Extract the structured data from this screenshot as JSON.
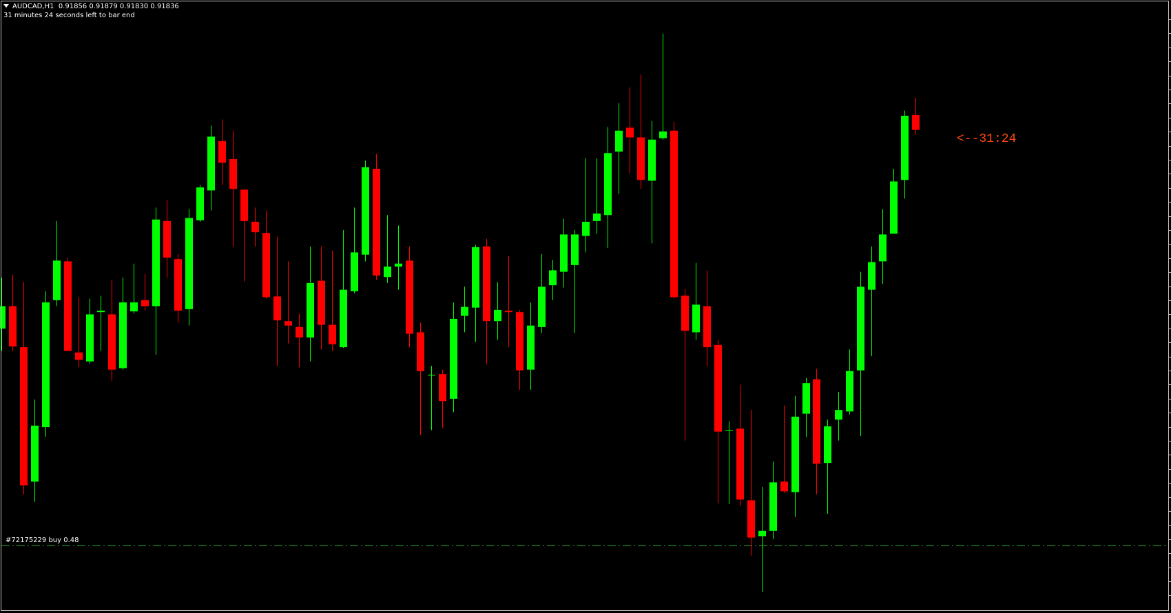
{
  "header": {
    "symbol": "AUDCAD,H1",
    "ohlc": "0.91856 0.91879 0.91830 0.91836",
    "timer_text": "31 minutes 24 seconds left to bar end"
  },
  "order_line": {
    "label": "#72175229 buy 0.48",
    "price": 0.91279,
    "color": "#2fa82f"
  },
  "countdown": {
    "text": "<--31:24",
    "color": "#ff4a10"
  },
  "colors": {
    "bull": "#00ff00",
    "bear": "#ff0000",
    "background": "#000000"
  },
  "chart_data": {
    "type": "candlestick",
    "symbol": "AUDCAD",
    "timeframe": "H1",
    "grid": false,
    "columns": [
      "open",
      "high",
      "low",
      "close"
    ],
    "candles": [
      [
        0.9157,
        0.91638,
        0.9154,
        0.916
      ],
      [
        0.916,
        0.91642,
        0.9154,
        0.91546
      ],
      [
        0.91545,
        0.91632,
        0.91348,
        0.9136
      ],
      [
        0.91365,
        0.91475,
        0.91338,
        0.9144
      ],
      [
        0.91438,
        0.9162,
        0.91425,
        0.91605
      ],
      [
        0.91608,
        0.91714,
        0.916,
        0.91661
      ],
      [
        0.9166,
        0.91665,
        0.9154,
        0.9154
      ],
      [
        0.91538,
        0.91612,
        0.91518,
        0.91528
      ],
      [
        0.91526,
        0.9161,
        0.91523,
        0.91589
      ],
      [
        0.91592,
        0.91614,
        0.9154,
        0.91594
      ],
      [
        0.91589,
        0.91635,
        0.915,
        0.91515
      ],
      [
        0.91517,
        0.91638,
        0.91515,
        0.91605
      ],
      [
        0.91593,
        0.91657,
        0.9159,
        0.91605
      ],
      [
        0.91608,
        0.91643,
        0.91594,
        0.916
      ],
      [
        0.916,
        0.91732,
        0.91535,
        0.91716
      ],
      [
        0.91714,
        0.91742,
        0.91638,
        0.91665
      ],
      [
        0.91663,
        0.9167,
        0.91578,
        0.91594
      ],
      [
        0.91596,
        0.9173,
        0.91574,
        0.91718
      ],
      [
        0.91715,
        0.91762,
        0.91713,
        0.91759
      ],
      [
        0.91755,
        0.91842,
        0.91728,
        0.91827
      ],
      [
        0.91821,
        0.9185,
        0.91762,
        0.91792
      ],
      [
        0.91797,
        0.91835,
        0.9168,
        0.91757
      ],
      [
        0.91756,
        0.91757,
        0.91633,
        0.91714
      ],
      [
        0.91713,
        0.91732,
        0.9168,
        0.91699
      ],
      [
        0.91698,
        0.91728,
        0.9161,
        0.91612
      ],
      [
        0.91613,
        0.91693,
        0.9152,
        0.91581
      ],
      [
        0.9158,
        0.9166,
        0.9155,
        0.91574
      ],
      [
        0.91572,
        0.9159,
        0.91518,
        0.91558
      ],
      [
        0.91558,
        0.9168,
        0.91526,
        0.91631
      ],
      [
        0.91634,
        0.9168,
        0.91542,
        0.91575
      ],
      [
        0.91575,
        0.91674,
        0.9154,
        0.91549
      ],
      [
        0.91545,
        0.91702,
        0.91544,
        0.91622
      ],
      [
        0.9162,
        0.91732,
        0.91617,
        0.91672
      ],
      [
        0.91669,
        0.91795,
        0.9166,
        0.91786
      ],
      [
        0.91784,
        0.91804,
        0.91635,
        0.91641
      ],
      [
        0.91639,
        0.91722,
        0.91631,
        0.91653
      ],
      [
        0.91653,
        0.91708,
        0.91622,
        0.91657
      ],
      [
        0.91661,
        0.9168,
        0.91545,
        0.91563
      ],
      [
        0.91565,
        0.91578,
        0.91427,
        0.91513
      ],
      [
        0.91507,
        0.9152,
        0.91434,
        0.91508
      ],
      [
        0.91509,
        0.91515,
        0.91437,
        0.91473
      ],
      [
        0.91476,
        0.91605,
        0.91458,
        0.91583
      ],
      [
        0.91587,
        0.91626,
        0.91565,
        0.91599
      ],
      [
        0.91598,
        0.91682,
        0.91552,
        0.91679
      ],
      [
        0.9168,
        0.9169,
        0.91522,
        0.9158
      ],
      [
        0.9158,
        0.91632,
        0.91555,
        0.91595
      ],
      [
        0.91594,
        0.91667,
        0.91545,
        0.91592
      ],
      [
        0.91592,
        0.91595,
        0.91488,
        0.91514
      ],
      [
        0.91515,
        0.91605,
        0.91488,
        0.91574
      ],
      [
        0.91572,
        0.9167,
        0.91564,
        0.91626
      ],
      [
        0.91628,
        0.91662,
        0.91608,
        0.91648
      ],
      [
        0.91646,
        0.91717,
        0.91625,
        0.91696
      ],
      [
        0.91655,
        0.91702,
        0.91564,
        0.91696
      ],
      [
        0.91694,
        0.91798,
        0.91672,
        0.91713
      ],
      [
        0.91714,
        0.91798,
        0.91697,
        0.91724
      ],
      [
        0.91722,
        0.9184,
        0.91678,
        0.91805
      ],
      [
        0.91807,
        0.91872,
        0.9175,
        0.91835
      ],
      [
        0.91839,
        0.91893,
        0.91778,
        0.91826
      ],
      [
        0.91826,
        0.9191,
        0.91757,
        0.91769
      ],
      [
        0.91768,
        0.91848,
        0.91684,
        0.91823
      ],
      [
        0.91825,
        0.91965,
        0.91823,
        0.91834
      ],
      [
        0.91835,
        0.91847,
        0.9161,
        0.91612
      ],
      [
        0.91614,
        0.91623,
        0.9142,
        0.91567
      ],
      [
        0.91565,
        0.91658,
        0.91555,
        0.91602
      ],
      [
        0.916,
        0.91648,
        0.9152,
        0.91545
      ],
      [
        0.91548,
        0.91555,
        0.91336,
        0.91432
      ],
      [
        0.91433,
        0.91446,
        0.91335,
        0.91434
      ],
      [
        0.91436,
        0.91495,
        0.91332,
        0.91341
      ],
      [
        0.9134,
        0.91461,
        0.91266,
        0.9129
      ],
      [
        0.91292,
        0.91358,
        0.91217,
        0.91299
      ],
      [
        0.91299,
        0.91392,
        0.91288,
        0.91364
      ],
      [
        0.91365,
        0.91467,
        0.9135,
        0.91352
      ],
      [
        0.91351,
        0.9148,
        0.91318,
        0.91452
      ],
      [
        0.91456,
        0.91504,
        0.91425,
        0.91497
      ],
      [
        0.91502,
        0.91516,
        0.91348,
        0.91389
      ],
      [
        0.9139,
        0.91448,
        0.91322,
        0.91439
      ],
      [
        0.91448,
        0.91485,
        0.9142,
        0.91461
      ],
      [
        0.91459,
        0.91542,
        0.91455,
        0.91513
      ],
      [
        0.91514,
        0.91646,
        0.91426,
        0.91626
      ],
      [
        0.91622,
        0.9168,
        0.91533,
        0.91659
      ],
      [
        0.9166,
        0.9173,
        0.9163,
        0.91696
      ],
      [
        0.91697,
        0.91784,
        0.91697,
        0.91767
      ],
      [
        0.91769,
        0.91862,
        0.91744,
        0.91855
      ],
      [
        0.91856,
        0.91879,
        0.9183,
        0.91836
      ]
    ]
  }
}
